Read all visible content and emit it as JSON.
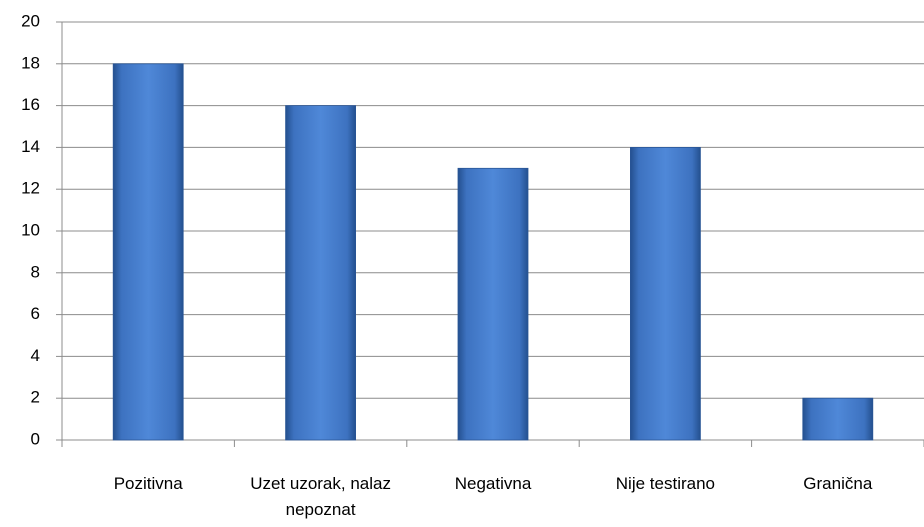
{
  "chart_data": {
    "type": "bar",
    "categories": [
      "Pozitivna",
      "Uzet uzorak, nalaz nepoznat",
      "Negativna",
      "Nije testirano",
      "Granična"
    ],
    "values": [
      18,
      16,
      13,
      14,
      2
    ],
    "color": "#4a7fcc",
    "ylim": [
      0,
      20
    ],
    "yticks": [
      0,
      2,
      4,
      6,
      8,
      10,
      12,
      14,
      16,
      18,
      20
    ],
    "grid": true
  }
}
